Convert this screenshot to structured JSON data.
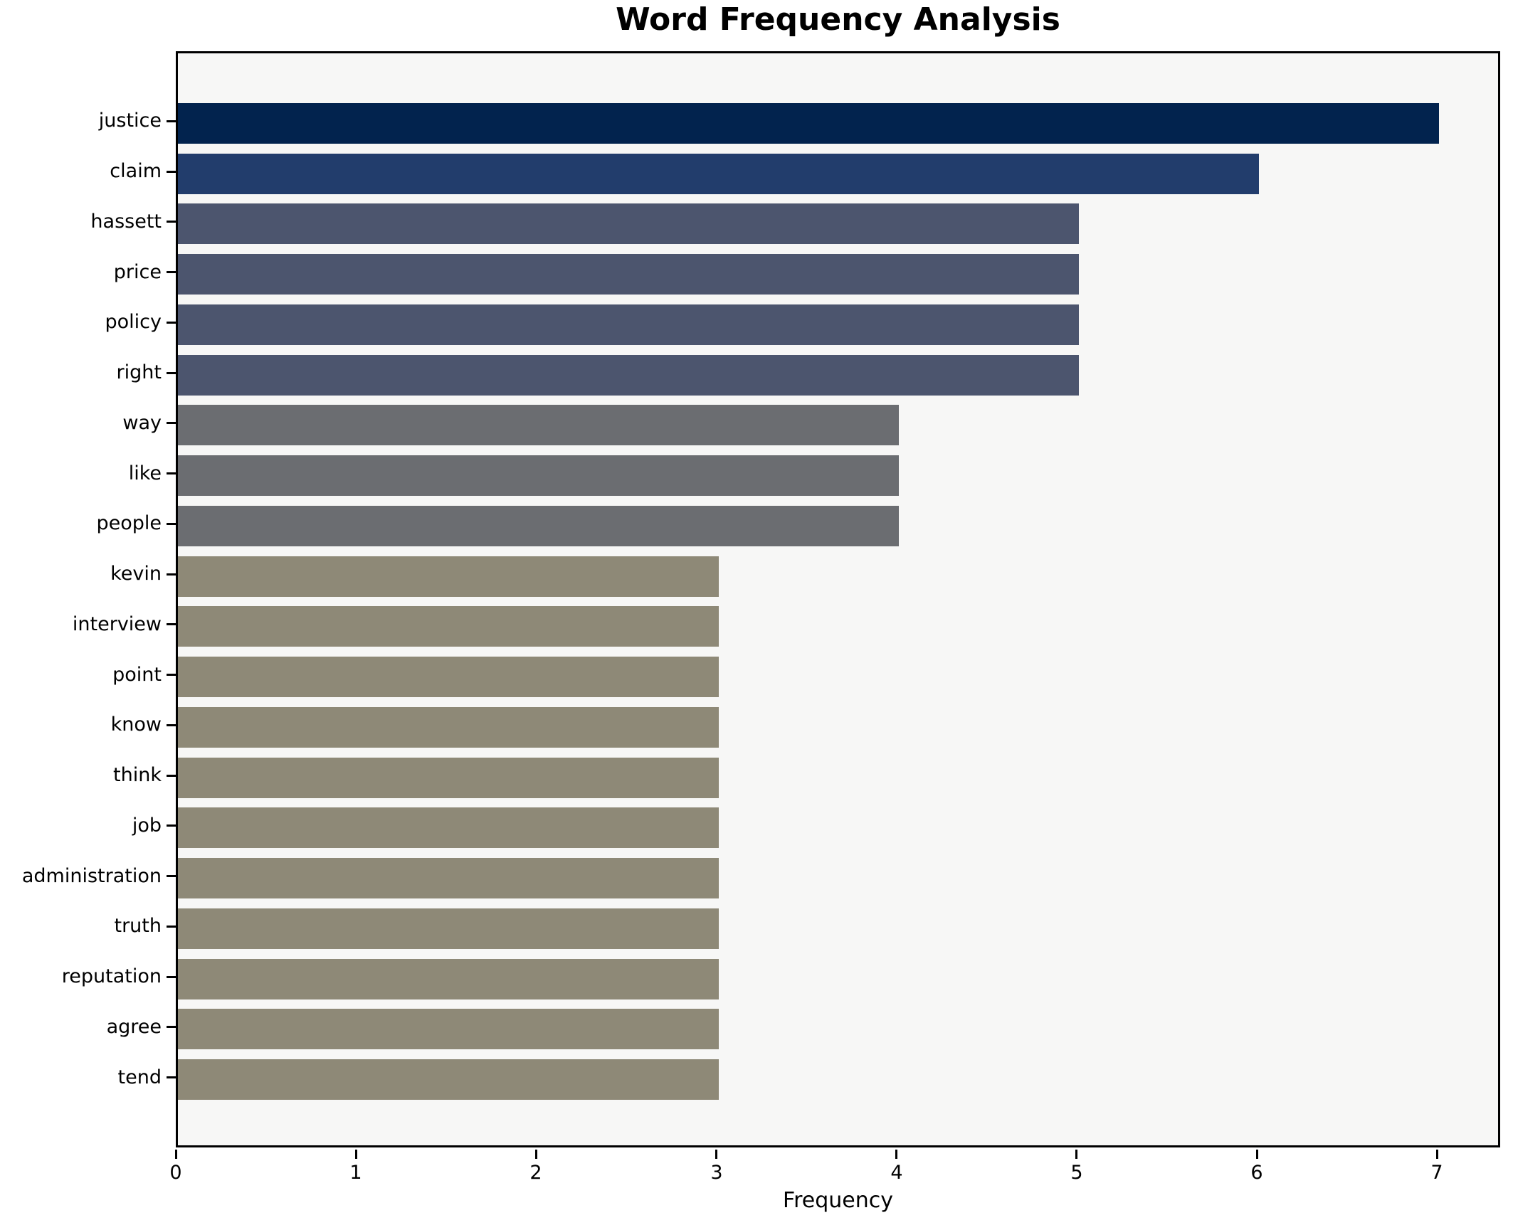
{
  "chart_data": {
    "type": "bar",
    "orientation": "horizontal",
    "title": "Word Frequency Analysis",
    "xlabel": "Frequency",
    "ylabel": "",
    "categories": [
      "justice",
      "claim",
      "hassett",
      "price",
      "policy",
      "right",
      "way",
      "like",
      "people",
      "kevin",
      "interview",
      "point",
      "know",
      "think",
      "job",
      "administration",
      "truth",
      "reputation",
      "agree",
      "tend"
    ],
    "values": [
      7,
      6,
      5,
      5,
      5,
      5,
      4,
      4,
      4,
      3,
      3,
      3,
      3,
      3,
      3,
      3,
      3,
      3,
      3,
      3
    ],
    "bar_colors": [
      "#02234e",
      "#223d6c",
      "#4c556e",
      "#4c556e",
      "#4c556e",
      "#4c556e",
      "#6b6d71",
      "#6b6d71",
      "#6b6d71",
      "#8e8977",
      "#8e8977",
      "#8e8977",
      "#8e8977",
      "#8e8977",
      "#8e8977",
      "#8e8977",
      "#8e8977",
      "#8e8977",
      "#8e8977",
      "#8e8977"
    ],
    "xticks": [
      0,
      1,
      2,
      3,
      4,
      5,
      6,
      7
    ],
    "xlim": [
      0,
      7.35
    ],
    "grid": false,
    "legend": false,
    "plot_background": "#f7f7f6",
    "figure_background": "#ffffff",
    "spine_color": "#000000",
    "text_color": "#000000"
  }
}
